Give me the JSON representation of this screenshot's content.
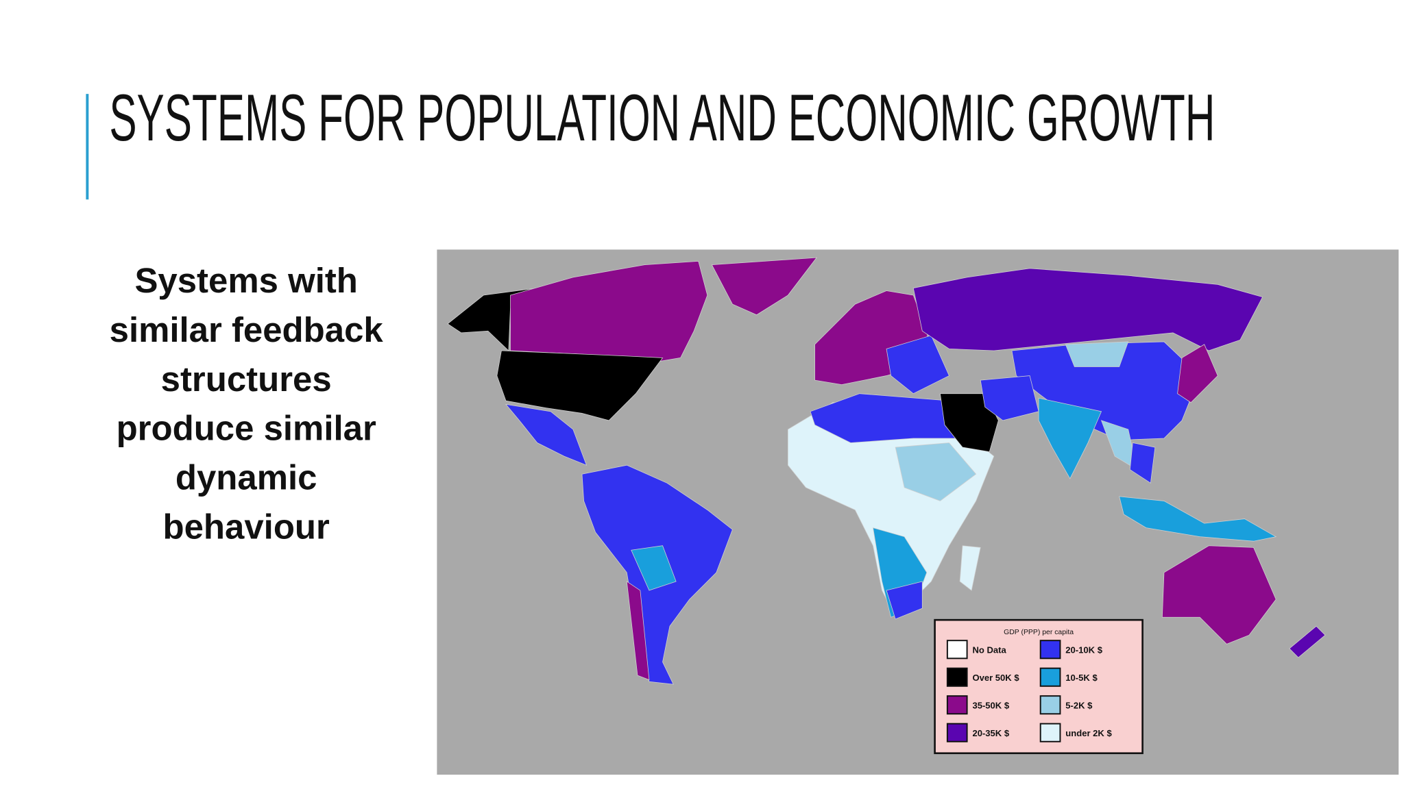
{
  "title": "SYSTEMS FOR POPULATION AND ECONOMIC GROWTH",
  "body_lines": [
    "Systems with",
    "similar feedback",
    "structures",
    "produce similar",
    "dynamic",
    "behaviour"
  ],
  "map": {
    "legend_title": "GDP (PPP) per capita",
    "legend": [
      {
        "label": "No Data",
        "color": "#ffffff"
      },
      {
        "label": "Over 50K $",
        "color": "#000000"
      },
      {
        "label": "35-50K $",
        "color": "#8b0a8b"
      },
      {
        "label": "20-35K $",
        "color": "#5a05b0"
      },
      {
        "label": "20-10K $",
        "color": "#3232f0"
      },
      {
        "label": "10-5K $",
        "color": "#199fdc"
      },
      {
        "label": "5-2K $",
        "color": "#99cfe6"
      },
      {
        "label": "under 2K $",
        "color": "#def3fa"
      }
    ]
  }
}
